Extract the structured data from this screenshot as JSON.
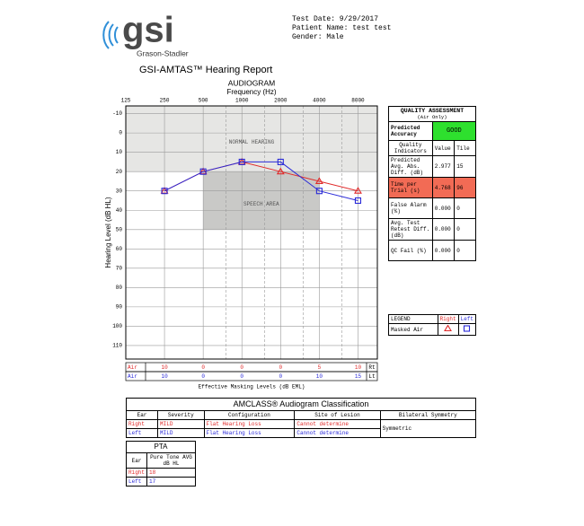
{
  "logo": {
    "brand": "gsi",
    "company": "Grason-Stadler"
  },
  "header": {
    "test_date": "Test Date: 9/29/2017",
    "patient_name": "Patient Name: test test",
    "gender": "Gender: Male"
  },
  "title": "GSI-AMTAS™ Hearing Report",
  "audiogram": {
    "type": "line",
    "title": "AUDIOGRAM",
    "x_label": "Frequency (Hz)",
    "y_label": "Hearing Level (dB HL)",
    "x": [
      250,
      500,
      1000,
      2000,
      4000,
      8000
    ],
    "log_x": true,
    "xlim": [
      125,
      11314
    ],
    "xticks": [
      125,
      250,
      500,
      1000,
      2000,
      4000,
      8000
    ],
    "xticks_minor": [
      750,
      1500,
      3000,
      6000
    ],
    "ylim": [
      -14,
      117
    ],
    "yticks": [
      -10,
      0,
      10,
      20,
      30,
      40,
      50,
      60,
      70,
      80,
      90,
      100,
      110
    ],
    "y_inverted": true,
    "grid": true,
    "regions": [
      {
        "label": "NORMAL HEARING",
        "xlim": [
          125,
          11314
        ],
        "ylim": [
          -14,
          20
        ],
        "color": "#e6e6e4"
      },
      {
        "label": "SPEECH AREA",
        "xlim": [
          500,
          4000
        ],
        "ylim": [
          20,
          50
        ],
        "color": "#c9c9c7"
      }
    ],
    "series": [
      {
        "name": "Right",
        "color": "#e02a2a",
        "marker": "triangle",
        "values": [
          30,
          20,
          15,
          20,
          25,
          30
        ]
      },
      {
        "name": "Left",
        "color": "#2a2ad8",
        "marker": "square",
        "values": [
          30,
          20,
          15,
          15,
          30,
          35
        ]
      }
    ]
  },
  "masking": {
    "caption": "Effective Masking Levels (dB EML)",
    "rows": [
      {
        "label": "Air",
        "values": [
          10,
          0,
          0,
          0,
          5,
          10
        ],
        "ear": "Rt"
      },
      {
        "label": "Air",
        "values": [
          10,
          0,
          0,
          0,
          10,
          15
        ],
        "ear": "Lt"
      }
    ]
  },
  "quality": {
    "title": "QUALITY ASSESSMENT",
    "subtitle": "(Air Only)",
    "accuracy_label": "Predicted Accuracy",
    "accuracy": "GOOD",
    "accuracy_color": "#2ee02e",
    "headers": [
      "Quality Indicators",
      "Value",
      "Tile"
    ],
    "rows": [
      {
        "indicator": "Predicted Avg. Abs. Diff. (dB)",
        "value": "2.977",
        "tile": "15"
      },
      {
        "indicator": "Time per Trial (s)",
        "value": "4.768",
        "tile": "96",
        "color": "#f26b55"
      },
      {
        "indicator": "False Alarm (%)",
        "value": "0.000",
        "tile": "0"
      },
      {
        "indicator": "Avg. Test Retest Diff. (dB)",
        "value": "0.000",
        "tile": "0"
      },
      {
        "indicator": "QC Fail (%)",
        "value": "0.000",
        "tile": "0"
      }
    ]
  },
  "legend": {
    "title": "LEGEND",
    "ears": [
      "Right",
      "Left"
    ],
    "row": "Masked Air"
  },
  "amclass": {
    "title": "AMCLASS® Audiogram Classification",
    "headers": [
      "Ear",
      "Severity",
      "Configuration",
      "Site of Lesion",
      "Bilateral Symmetry"
    ],
    "rows": [
      [
        "Right",
        "MILD",
        "Flat Hearing Loss",
        "Cannot determine"
      ],
      [
        "Left",
        "MILD",
        "Flat Hearing Loss",
        "Cannot determine"
      ]
    ],
    "symmetry": "Symmetric"
  },
  "pta": {
    "title": "PTA",
    "headers": [
      "Ear",
      "Pure Tone AVG dB HL"
    ],
    "rows": [
      [
        "Right",
        "18"
      ],
      [
        "Left",
        "17"
      ]
    ]
  }
}
